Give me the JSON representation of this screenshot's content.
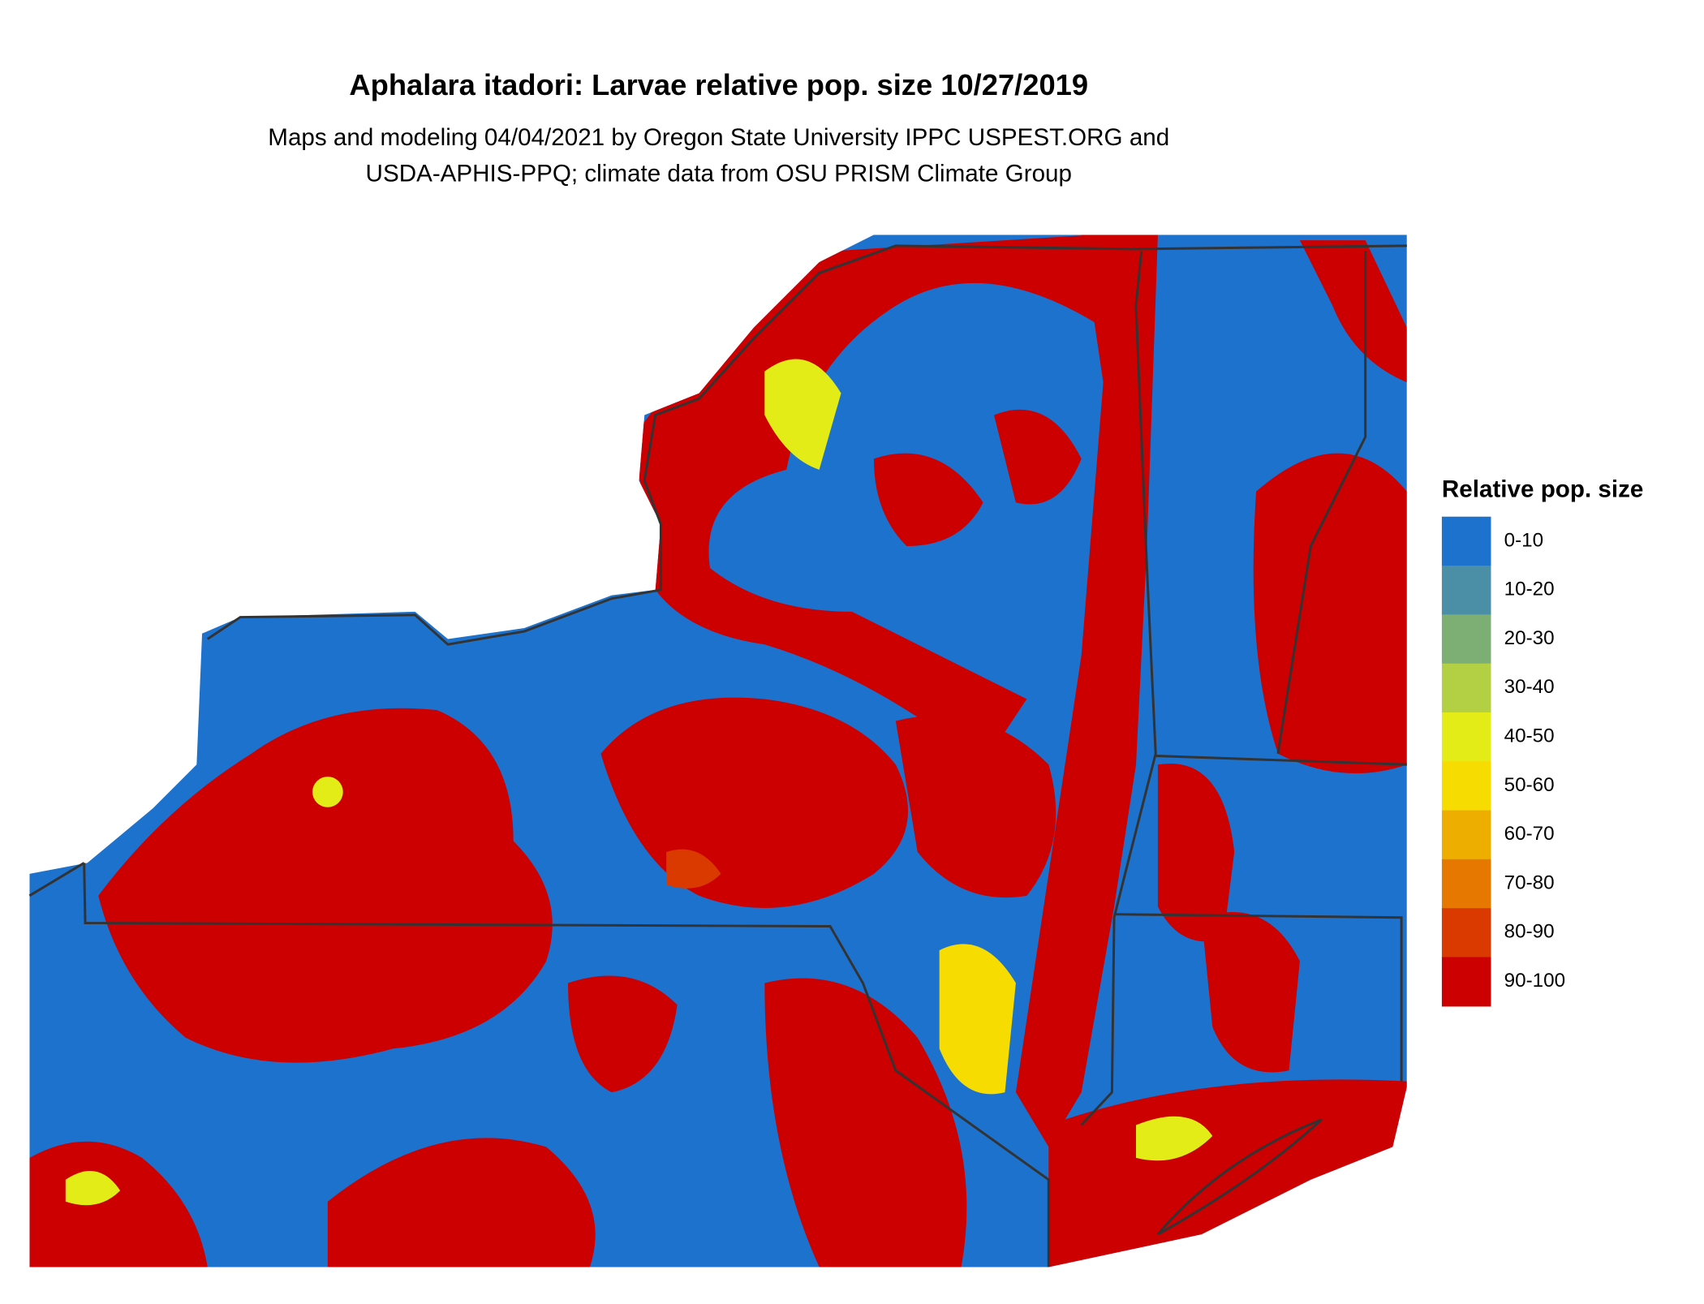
{
  "title": "Aphalara itadori: Larvae relative pop. size 10/27/2019",
  "subtitle": [
    "Maps and modeling 04/04/2021 by Oregon State University IPPC USPEST.ORG and",
    "USDA-APHIS-PPQ; climate data from OSU PRISM Climate Group"
  ],
  "legend": {
    "title": "Relative pop. size",
    "items": [
      {
        "label": "0-10",
        "color": "#1c72cc"
      },
      {
        "label": "10-20",
        "color": "#4a8fa6"
      },
      {
        "label": "20-30",
        "color": "#7dae74"
      },
      {
        "label": "30-40",
        "color": "#b3d044"
      },
      {
        "label": "40-50",
        "color": "#e4ec18"
      },
      {
        "label": "50-60",
        "color": "#f6dc00"
      },
      {
        "label": "60-70",
        "color": "#eeae00"
      },
      {
        "label": "70-80",
        "color": "#e67800"
      },
      {
        "label": "80-90",
        "color": "#da3a00"
      },
      {
        "label": "90-100",
        "color": "#cc0000"
      }
    ]
  }
}
